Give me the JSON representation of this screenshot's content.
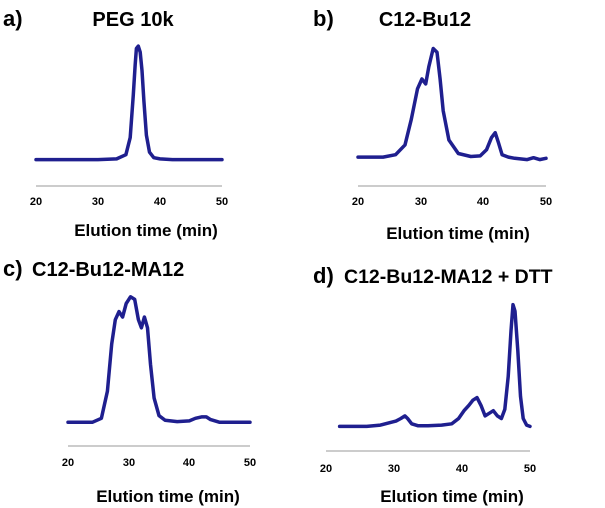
{
  "chart_data": [
    {
      "type": "line",
      "panel_label": "a)",
      "title": "PEG 10k",
      "xlabel": "Elution time (min)",
      "ylabel": "",
      "xlim": [
        20,
        50
      ],
      "ylim": [
        0,
        1
      ],
      "xticks": [
        20,
        30,
        40,
        50
      ],
      "color": "#1f1f8f",
      "series": [
        {
          "name": "PEG 10k",
          "x": [
            20,
            25,
            30,
            33,
            34.5,
            35.2,
            35.7,
            36.0,
            36.2,
            36.5,
            36.8,
            37.1,
            37.4,
            37.8,
            38.3,
            39,
            40,
            42,
            45,
            48,
            50
          ],
          "y": [
            0.02,
            0.02,
            0.02,
            0.025,
            0.06,
            0.2,
            0.55,
            0.8,
            0.93,
            0.95,
            0.9,
            0.75,
            0.5,
            0.22,
            0.08,
            0.035,
            0.025,
            0.02,
            0.02,
            0.02,
            0.02
          ]
        }
      ]
    },
    {
      "type": "line",
      "panel_label": "b)",
      "title": "C12-Bu12",
      "xlabel": "Elution time (min)",
      "ylabel": "",
      "xlim": [
        20,
        50
      ],
      "ylim": [
        0,
        1
      ],
      "xticks": [
        20,
        30,
        40,
        50
      ],
      "color": "#1f1f8f",
      "series": [
        {
          "name": "C12-Bu12",
          "x": [
            20,
            24,
            26,
            27.5,
            28.5,
            29.5,
            30.2,
            30.8,
            31.3,
            32.0,
            32.6,
            33.1,
            33.6,
            34.5,
            36,
            38,
            39.5,
            40.5,
            41.3,
            41.9,
            42.4,
            43,
            44,
            45,
            47,
            48,
            49,
            50
          ],
          "y": [
            0.04,
            0.04,
            0.06,
            0.14,
            0.35,
            0.6,
            0.68,
            0.64,
            0.78,
            0.93,
            0.9,
            0.68,
            0.42,
            0.18,
            0.07,
            0.045,
            0.05,
            0.1,
            0.2,
            0.24,
            0.16,
            0.06,
            0.04,
            0.03,
            0.02,
            0.035,
            0.02,
            0.03
          ]
        }
      ]
    },
    {
      "type": "line",
      "panel_label": "c)",
      "title": "C12-Bu12-MA12",
      "xlabel": "Elution time (min)",
      "ylabel": "",
      "xlim": [
        20,
        50
      ],
      "ylim": [
        0,
        1
      ],
      "xticks": [
        20,
        30,
        40,
        50
      ],
      "color": "#1f1f8f",
      "series": [
        {
          "name": "C12-Bu12-MA12",
          "x": [
            20,
            24,
            25.5,
            26.5,
            27.2,
            27.8,
            28.4,
            29.0,
            29.6,
            30.3,
            31.0,
            31.6,
            32.1,
            32.6,
            33.1,
            33.6,
            34.2,
            35,
            36,
            38,
            40,
            41,
            42,
            42.8,
            43.5,
            45,
            50
          ],
          "y": [
            0.02,
            0.02,
            0.05,
            0.25,
            0.6,
            0.78,
            0.84,
            0.8,
            0.9,
            0.95,
            0.93,
            0.78,
            0.72,
            0.8,
            0.72,
            0.45,
            0.2,
            0.07,
            0.035,
            0.025,
            0.03,
            0.05,
            0.06,
            0.06,
            0.04,
            0.02,
            0.02
          ]
        }
      ]
    },
    {
      "type": "line",
      "panel_label": "d)",
      "title": "C12-Bu12-MA12 + DTT",
      "xlabel": "Elution time (min)",
      "ylabel": "",
      "xlim": [
        20,
        50
      ],
      "ylim": [
        0,
        1
      ],
      "xticks": [
        20,
        30,
        40,
        50
      ],
      "color": "#1f1f8f",
      "series": [
        {
          "name": "C12-Bu12-MA12 + DTT",
          "x": [
            22,
            26,
            28,
            29.5,
            30.3,
            31,
            31.6,
            32,
            32.6,
            33.5,
            35,
            37,
            38.5,
            39.5,
            40.3,
            41.0,
            41.6,
            42.2,
            42.8,
            43.4,
            44.0,
            44.6,
            45.2,
            45.8,
            46.3,
            46.8,
            47.2,
            47.5,
            47.8,
            48.2,
            48.6,
            49.0,
            49.5,
            50
          ],
          "y": [
            0.02,
            0.02,
            0.03,
            0.05,
            0.06,
            0.08,
            0.1,
            0.08,
            0.04,
            0.025,
            0.025,
            0.03,
            0.04,
            0.08,
            0.14,
            0.18,
            0.22,
            0.24,
            0.18,
            0.1,
            0.12,
            0.14,
            0.1,
            0.08,
            0.15,
            0.4,
            0.75,
            0.95,
            0.9,
            0.6,
            0.25,
            0.08,
            0.03,
            0.02
          ]
        }
      ]
    }
  ]
}
